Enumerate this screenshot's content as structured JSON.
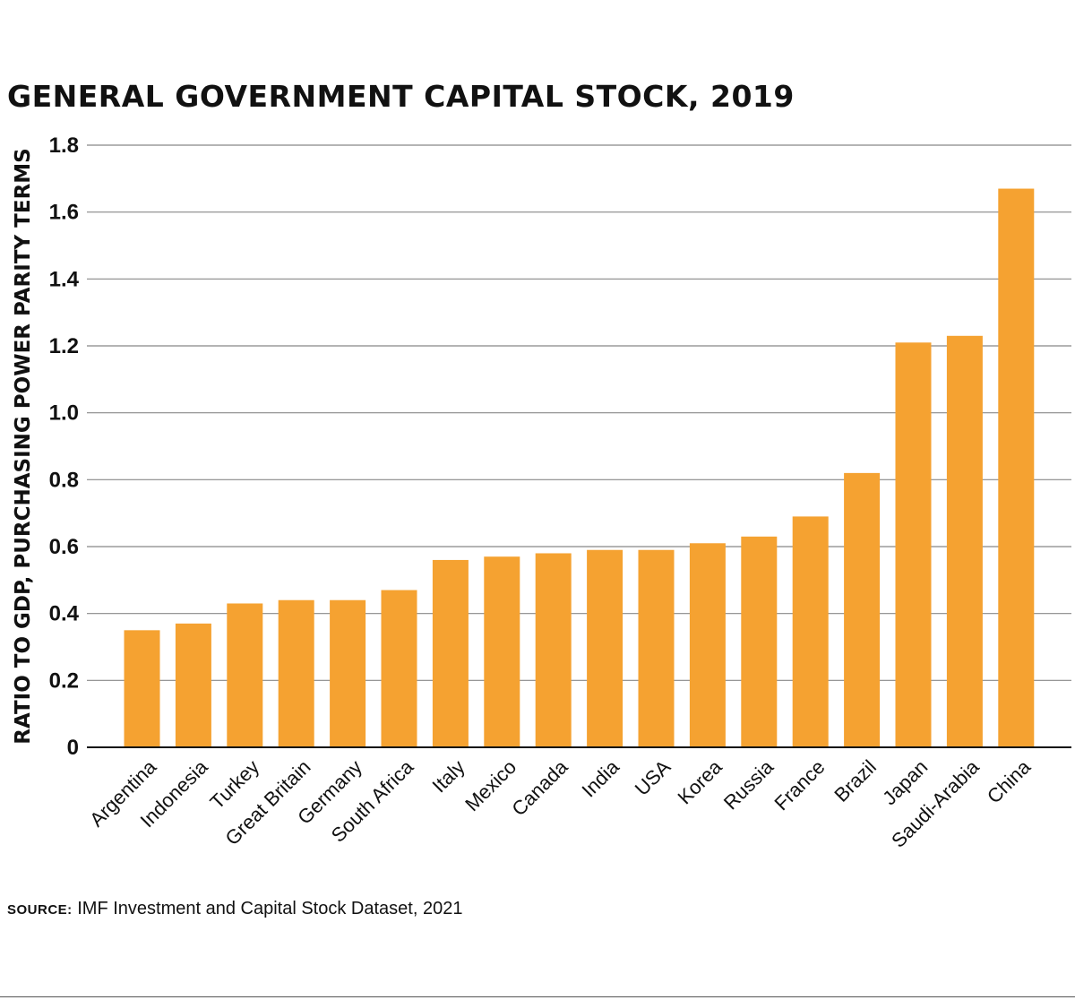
{
  "chart_data": {
    "type": "bar",
    "title": "GENERAL GOVERNMENT CAPITAL STOCK, 2019",
    "xlabel": "",
    "ylabel": "RATIO TO GDP, PURCHASING POWER PARITY TERMS",
    "ylim": [
      0,
      1.8
    ],
    "yticks": [
      "0",
      "0.2",
      "0.4",
      "0.6",
      "0.8",
      "1.0",
      "1.2",
      "1.4",
      "1.6",
      "1.8"
    ],
    "grid": true,
    "categories": [
      "Argentina",
      "Indonesia",
      "Turkey",
      "Great Britain",
      "Germany",
      "South Africa",
      "Italy",
      "Mexico",
      "Canada",
      "India",
      "USA",
      "Korea",
      "Russia",
      "France",
      "Brazil",
      "Japan",
      "Saudi-Arabia",
      "China"
    ],
    "values": [
      0.35,
      0.37,
      0.43,
      0.44,
      0.44,
      0.47,
      0.56,
      0.57,
      0.58,
      0.59,
      0.59,
      0.61,
      0.63,
      0.69,
      0.82,
      1.21,
      1.23,
      1.67
    ],
    "colors": {
      "bar": "#f5a231",
      "grid": "#888888",
      "axis": "#111111"
    }
  },
  "source": {
    "label": "SOURCE:",
    "text": "IMF Investment and Capital Stock Dataset, 2021"
  }
}
